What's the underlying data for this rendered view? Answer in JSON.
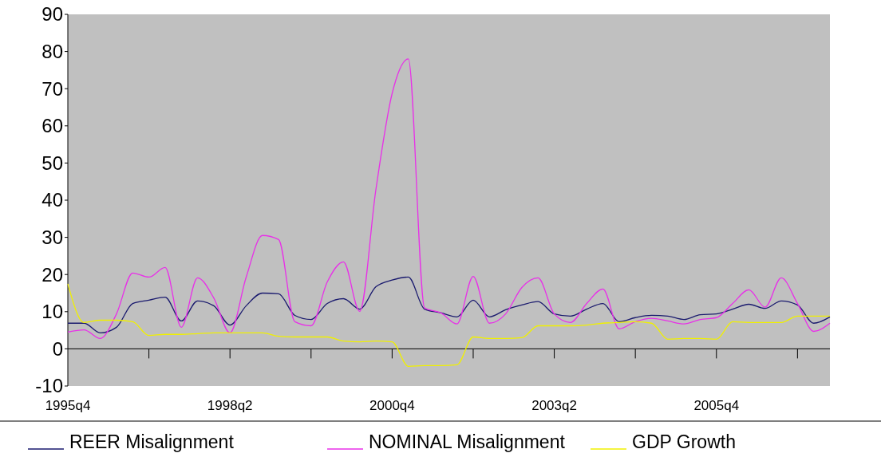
{
  "chart_data": {
    "type": "line",
    "categories": [
      "1995q4",
      null,
      null,
      null,
      null,
      null,
      null,
      null,
      null,
      null,
      "1998q2",
      null,
      null,
      null,
      null,
      null,
      null,
      null,
      null,
      null,
      "2000q4",
      null,
      null,
      null,
      null,
      null,
      null,
      null,
      null,
      null,
      "2003q2",
      null,
      null,
      null,
      null,
      null,
      null,
      null,
      null,
      null,
      "2005q4",
      null,
      null,
      null,
      null,
      null,
      null,
      null
    ],
    "series": [
      {
        "name": "REER Misalignment",
        "color": "#1a1a6e",
        "values": [
          6.9,
          6.9,
          4.3,
          5.8,
          12.2,
          13.1,
          13.9,
          7.5,
          12.9,
          11.6,
          6.4,
          11.6,
          15.0,
          14.8,
          9.0,
          7.9,
          12.2,
          13.5,
          10.7,
          16.7,
          18.5,
          19.3,
          10.7,
          9.7,
          8.6,
          13.1,
          8.6,
          10.5,
          11.8,
          12.7,
          9.4,
          8.8,
          10.7,
          12.2,
          7.3,
          8.4,
          9.0,
          8.8,
          7.9,
          9.2,
          9.4,
          10.7,
          12.0,
          10.9,
          12.9,
          11.8,
          6.9,
          8.6
        ]
      },
      {
        "name": "NOMINAL Misalignment",
        "color": "#e830e8",
        "values": [
          4.5,
          5.1,
          2.8,
          9.4,
          20.4,
          19.3,
          21.9,
          5.8,
          19.1,
          13.7,
          4.3,
          19.3,
          30.5,
          29.4,
          7.3,
          6.2,
          18.0,
          23.4,
          10.1,
          42.9,
          68.7,
          78,
          11,
          9.7,
          6.7,
          19.5,
          6.9,
          9.4,
          16.5,
          19.1,
          9.4,
          7.1,
          12.2,
          16.1,
          5.4,
          7.3,
          8.2,
          7.5,
          6.7,
          7.9,
          8.4,
          12.2,
          15.9,
          11.2,
          19.1,
          12.2,
          4.7,
          6.9
        ]
      },
      {
        "name": "GDP Growth",
        "color": "#f0f000",
        "values": [
          17.5,
          7.1,
          7.7,
          7.7,
          7.3,
          3.6,
          3.9,
          3.9,
          4.1,
          4.3,
          4.3,
          4.3,
          4.3,
          3.4,
          3.2,
          3.2,
          3.2,
          2.1,
          1.9,
          2.1,
          1.9,
          -4.7,
          -4.5,
          -4.5,
          -4.3,
          3.2,
          2.8,
          2.8,
          3.0,
          6.2,
          6.2,
          6.2,
          6.4,
          6.9,
          7.1,
          7.3,
          6.9,
          2.6,
          2.8,
          2.8,
          2.6,
          7.3,
          7.1,
          7.1,
          7.1,
          8.8,
          8.8,
          8.8
        ]
      }
    ],
    "ylim": [
      -10,
      90
    ],
    "yticks": [
      -10,
      0,
      10,
      20,
      30,
      40,
      50,
      60,
      70,
      80,
      90
    ],
    "ref_lines": [
      {
        "axis": "y",
        "value": 0,
        "color": "#000000"
      }
    ],
    "legend": "bottom",
    "marker": "none",
    "line_style": "solid",
    "grid": false
  }
}
